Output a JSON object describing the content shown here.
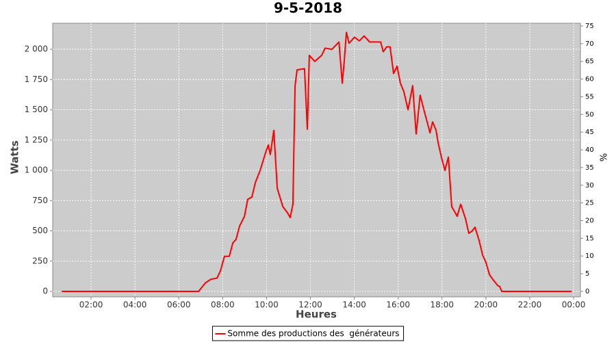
{
  "chart_data": {
    "type": "line",
    "title": "9-5-2018",
    "x_label": "Heures",
    "y_label": "Watts",
    "y2_label": "%",
    "x": [
      0.66,
      6.5,
      6.9,
      7.21,
      7.46,
      7.74,
      7.9,
      8.08,
      8.3,
      8.46,
      8.61,
      8.77,
      8.99,
      9.14,
      9.33,
      9.49,
      9.71,
      9.96,
      10.08,
      10.17,
      10.33,
      10.49,
      10.74,
      10.95,
      11.08,
      11.2,
      11.3,
      11.39,
      11.73,
      11.86,
      11.95,
      12.2,
      12.51,
      12.67,
      12.98,
      13.3,
      13.45,
      13.54,
      13.64,
      13.76,
      14.01,
      14.23,
      14.45,
      14.7,
      14.95,
      15.2,
      15.32,
      15.48,
      15.63,
      15.79,
      15.95,
      16.1,
      16.26,
      16.45,
      16.66,
      16.82,
      17.0,
      17.2,
      17.35,
      17.45,
      17.57,
      17.73,
      17.82,
      17.98,
      18.13,
      18.29,
      18.44,
      18.57,
      18.69,
      18.85,
      19.07,
      19.22,
      19.38,
      19.5,
      19.69,
      19.85,
      20.0,
      20.16,
      20.31,
      20.53,
      20.63,
      20.72,
      23.9
    ],
    "series": [
      {
        "name": "Somme des productions des  générateurs",
        "color": "#ff0000",
        "values": [
          0,
          0,
          0,
          70,
          100,
          110,
          170,
          290,
          290,
          400,
          430,
          540,
          620,
          760,
          780,
          900,
          1000,
          1150,
          1210,
          1130,
          1330,
          850,
          700,
          650,
          610,
          720,
          1700,
          1830,
          1840,
          1340,
          1950,
          1900,
          1950,
          2010,
          2000,
          2060,
          1720,
          1900,
          2140,
          2050,
          2100,
          2070,
          2110,
          2060,
          2060,
          2060,
          1980,
          2020,
          2020,
          1800,
          1860,
          1720,
          1650,
          1500,
          1700,
          1300,
          1620,
          1480,
          1380,
          1310,
          1400,
          1330,
          1230,
          1100,
          1000,
          1110,
          700,
          660,
          620,
          720,
          600,
          480,
          500,
          530,
          420,
          300,
          240,
          140,
          100,
          50,
          40,
          0,
          0
        ]
      }
    ],
    "xlim": [
      0.25,
      24.31
    ],
    "xticks": [
      {
        "value": 2,
        "label": "02:00"
      },
      {
        "value": 4,
        "label": "04:00"
      },
      {
        "value": 6,
        "label": "06:00"
      },
      {
        "value": 8,
        "label": "08:00"
      },
      {
        "value": 10,
        "label": "10:00"
      },
      {
        "value": 12,
        "label": "12:00"
      },
      {
        "value": 14,
        "label": "14:00"
      },
      {
        "value": 16,
        "label": "16:00"
      },
      {
        "value": 18,
        "label": "18:00"
      },
      {
        "value": 20,
        "label": "20:00"
      },
      {
        "value": 22,
        "label": "22:00"
      },
      {
        "value": 24,
        "label": "00:00"
      }
    ],
    "ylim": [
      -45,
      2215
    ],
    "yticks": [
      0,
      250,
      500,
      750,
      {
        "value": 1000,
        "label": "1 000"
      },
      {
        "value": 1250,
        "label": "1 250"
      },
      {
        "value": 1500,
        "label": "1 500"
      },
      {
        "value": 1750,
        "label": "1 750"
      },
      {
        "value": 2000,
        "label": "2 000"
      }
    ],
    "y2lim": [
      -1.55,
      75.77
    ],
    "y2ticks": [
      0,
      5,
      10,
      15,
      20,
      25,
      30,
      35,
      40,
      45,
      50,
      55,
      60,
      65,
      70,
      75
    ],
    "grid": true,
    "legend": "bottom"
  }
}
